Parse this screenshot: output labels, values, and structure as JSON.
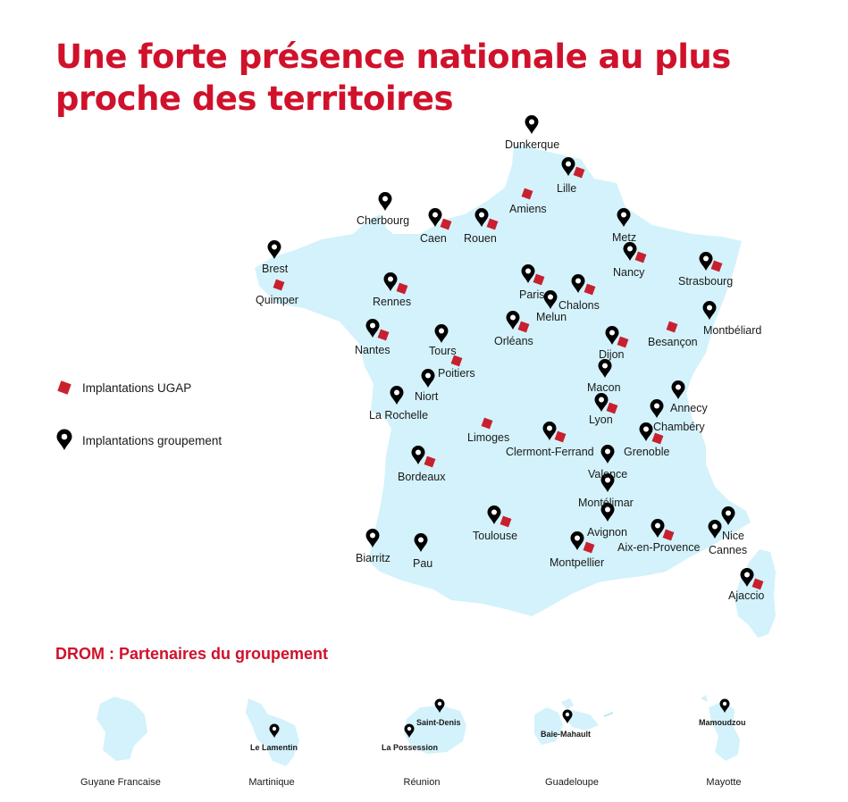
{
  "title": {
    "line1": "Une forte présence nationale au plus",
    "line2": "proche des territoires"
  },
  "colors": {
    "accent": "#d0112b",
    "land": "#d3f2fb",
    "ugap_marker": "#c8202f",
    "group_marker": "#000000"
  },
  "legend": {
    "ugap": "Implantations UGAP",
    "group": "Implantations groupement",
    "ugap_icon": "red-square-icon",
    "group_icon": "map-pin-icon"
  },
  "cities": {
    "dunkerque": "Dunkerque",
    "lille": "Lille",
    "amiens": "Amiens",
    "cherbourg": "Cherbourg",
    "caen": "Caen",
    "rouen": "Rouen",
    "metz": "Metz",
    "brest": "Brest",
    "nancy": "Nancy",
    "strasbourg": "Strasbourg",
    "quimper": "Quimper",
    "rennes": "Rennes",
    "paris": "Paris",
    "chalons": "Chalons",
    "melun": "Melun",
    "montbeliard": "Montbéliard",
    "nantes": "Nantes",
    "orleans": "Orléans",
    "tours": "Tours",
    "besancon": "Besançon",
    "dijon": "Dijon",
    "poitiers": "Poitiers",
    "macon": "Macon",
    "niort": "Niort",
    "annecy": "Annecy",
    "la_rochelle": "La Rochelle",
    "lyon": "Lyon",
    "chambery": "Chambéry",
    "limoges": "Limoges",
    "clermont": "Clermont-Ferrand",
    "grenoble": "Grenoble",
    "bordeaux": "Bordeaux",
    "valence": "Valence",
    "montelimar": "Montélimar",
    "avignon": "Avignon",
    "nice": "Nice",
    "toulouse": "Toulouse",
    "aix": "Aix-en-Provence",
    "cannes": "Cannes",
    "biarritz": "Biarritz",
    "pau": "Pau",
    "montpellier": "Montpellier",
    "ajaccio": "Ajaccio"
  },
  "drom": {
    "title": "DROM : Partenaires du groupement",
    "islands": {
      "guyane": "Guyane Francaise",
      "martinique": "Martinique",
      "reunion": "Réunion",
      "guadeloupe": "Guadeloupe",
      "mayotte": "Mayotte"
    },
    "partners": {
      "le_lamentin": "Le Lamentin",
      "saint_denis": "Saint-Denis",
      "la_possession": "La Possession",
      "baie_mahault": "Baie-Mahault",
      "mamoudzou": "Mamoudzou"
    }
  }
}
